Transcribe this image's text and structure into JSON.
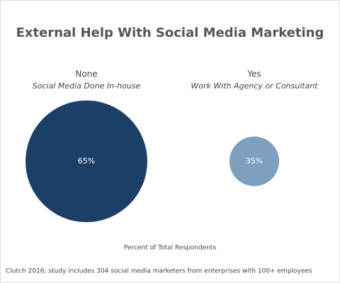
{
  "chart_data": {
    "type": "bubble",
    "title": "External Help With Social Media Marketing",
    "categories": [
      "None",
      "Yes"
    ],
    "category_subtitles": [
      "Social Media Done In-house",
      "Work With Agency or Consultant"
    ],
    "values": [
      65,
      35
    ],
    "value_labels": [
      "65%",
      "35%"
    ],
    "colors": [
      "#1b3f66",
      "#7f9fbf"
    ],
    "xlabel": "Percent of Total Respondents",
    "source": "Clutch 2016; study includes 304 social media marketers from enterprises with 100+ employees"
  }
}
